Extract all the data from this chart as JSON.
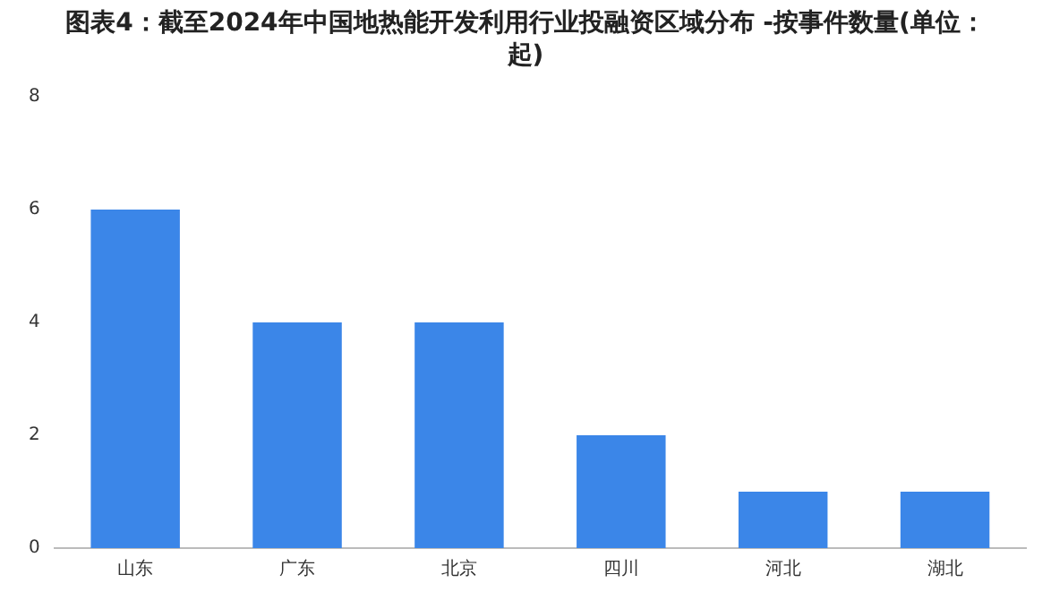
{
  "chart_data": {
    "type": "bar",
    "title": "图表4：截至2024年中国地热能开发利用行业投融资区域分布 -按事件数量(单位：起)",
    "categories": [
      "山东",
      "广东",
      "北京",
      "四川",
      "河北",
      "湖北"
    ],
    "values": [
      6,
      4,
      4,
      2,
      1,
      1
    ],
    "color": "#3b86e8",
    "ylim": [
      0,
      8
    ],
    "yticks": [
      0,
      2,
      4,
      6,
      8
    ],
    "grid": false,
    "legend": false
  }
}
